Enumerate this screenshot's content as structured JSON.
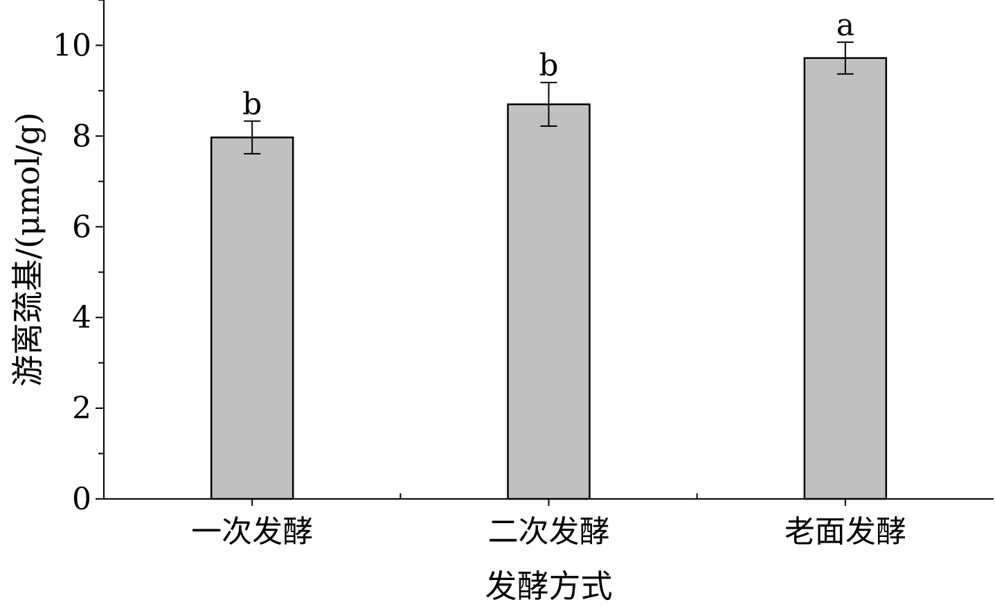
{
  "chart_data": {
    "type": "bar",
    "title": "",
    "xlabel": "发酵方式",
    "ylabel": "游离巯基/(μmol/g)",
    "categories": [
      "一次发酵",
      "二次发酵",
      "老面发酵"
    ],
    "series": [
      {
        "values": [
          7.97,
          8.7,
          9.72
        ],
        "errors": [
          0.36,
          0.48,
          0.35
        ],
        "significance": [
          "b",
          "b",
          "a"
        ]
      }
    ],
    "ylim": [
      0,
      11
    ],
    "yticks": [
      0,
      2,
      4,
      6,
      8,
      10
    ],
    "grid": false,
    "legend": "none",
    "colors": {
      "bar_fill": "#c0c0c0",
      "bar_stroke": "#000000",
      "axis": "#000000"
    }
  }
}
